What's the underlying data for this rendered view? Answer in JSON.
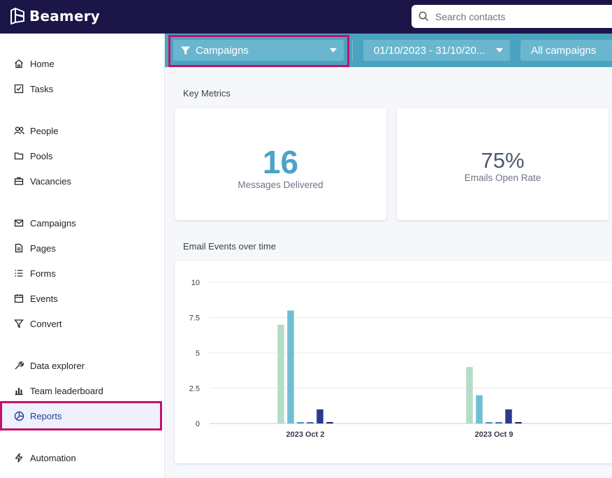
{
  "app": {
    "name": "Beamery"
  },
  "search": {
    "placeholder": "Search contacts"
  },
  "sidebar": {
    "items": [
      {
        "label": "Home",
        "icon": "home-icon"
      },
      {
        "label": "Tasks",
        "icon": "tasks-icon"
      },
      {
        "label": "People",
        "icon": "people-icon"
      },
      {
        "label": "Pools",
        "icon": "folder-icon"
      },
      {
        "label": "Vacancies",
        "icon": "briefcase-icon"
      },
      {
        "label": "Campaigns",
        "icon": "mail-icon"
      },
      {
        "label": "Pages",
        "icon": "page-icon"
      },
      {
        "label": "Forms",
        "icon": "list-icon"
      },
      {
        "label": "Events",
        "icon": "calendar-icon"
      },
      {
        "label": "Convert",
        "icon": "funnel-icon"
      },
      {
        "label": "Data explorer",
        "icon": "wrench-icon"
      },
      {
        "label": "Team leaderboard",
        "icon": "bar-chart-icon"
      },
      {
        "label": "Reports",
        "icon": "pie-chart-icon",
        "active": true
      },
      {
        "label": "Automation",
        "icon": "lightning-icon"
      }
    ]
  },
  "filters": {
    "report_type": "Campaigns",
    "date_range": "01/10/2023 - 31/10/20...",
    "campaign": "All campaigns"
  },
  "key_metrics": {
    "title": "Key Metrics",
    "messages_delivered": {
      "value": "16",
      "label": "Messages Delivered"
    },
    "open_rate": {
      "value": "75%",
      "label": "Emails Open Rate"
    }
  },
  "email_events": {
    "title": "Email Events over time"
  },
  "colors": {
    "topbar": "#1b1647",
    "filterbar": "#4aa3c0",
    "highlight": "#c5106b",
    "metric_accent": "#4aa3c8",
    "active_nav": "#eef0fc"
  },
  "chart_data": {
    "type": "bar",
    "categories": [
      "2023 Oct 2",
      "2023 Oct 9"
    ],
    "y_ticks": [
      "0",
      "2.5",
      "5",
      "7.5",
      "10"
    ],
    "ylim": [
      0,
      10
    ],
    "grid": true,
    "series": [
      {
        "color": "#b4dcc7",
        "values": [
          7,
          4
        ]
      },
      {
        "color": "#6fbfd2",
        "values": [
          8,
          2
        ]
      },
      {
        "color": "#4a8fb8",
        "values": [
          0.1,
          0.1
        ]
      },
      {
        "color": "#3a6aaa",
        "values": [
          0.1,
          0.1
        ]
      },
      {
        "color": "#2b3a8e",
        "values": [
          1,
          1
        ]
      },
      {
        "color": "#1d2466",
        "values": [
          0.1,
          0.1
        ]
      }
    ]
  }
}
